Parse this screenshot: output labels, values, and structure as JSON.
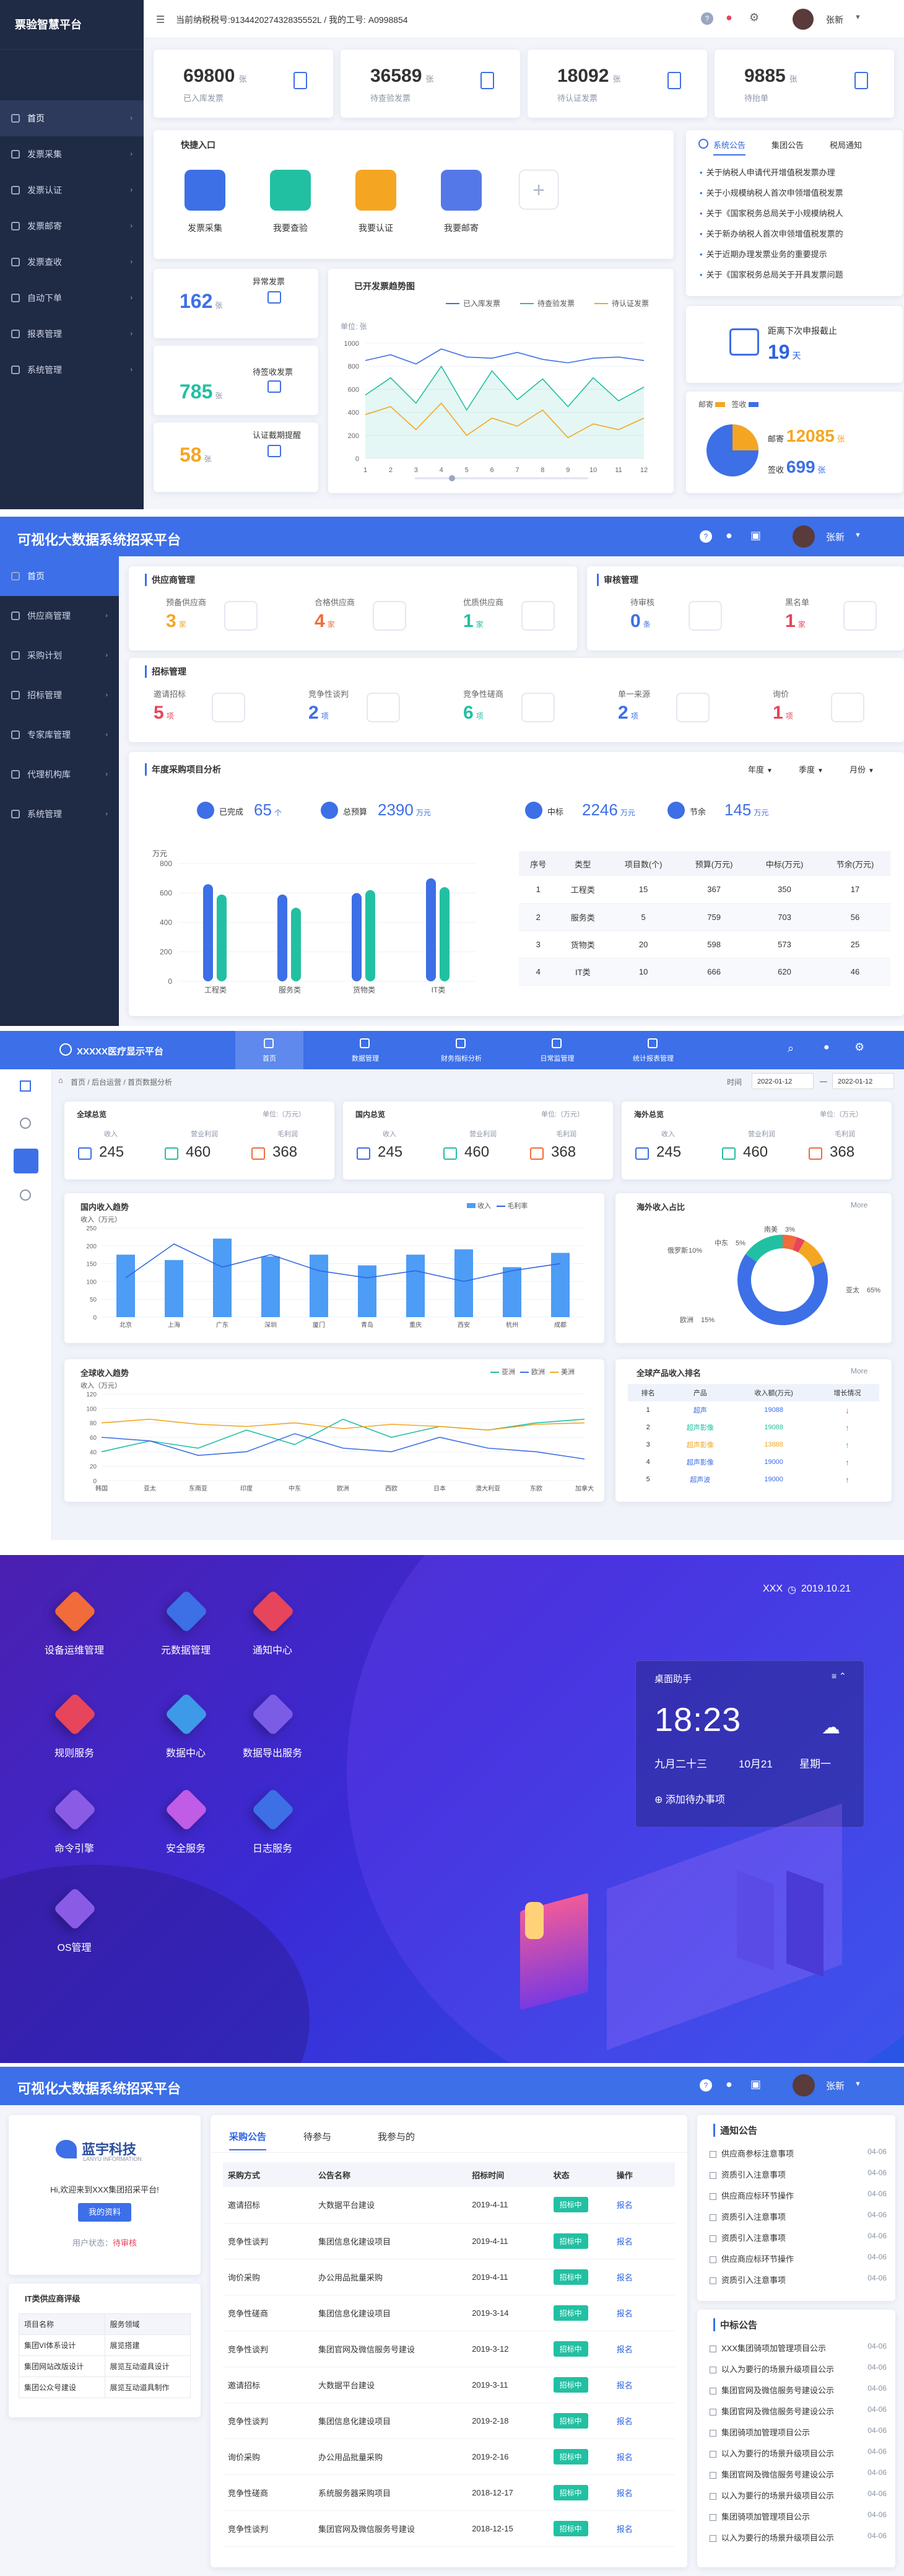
{
  "s1": {
    "brand": "票验智慧平台",
    "taxline": "当前纳税税号:913442027432835552L / 我的工号: A0998854",
    "user": "张新",
    "menu": [
      "首页",
      "发票采集",
      "发票认证",
      "发票邮寄",
      "发票查收",
      "自动下单",
      "报表管理",
      "系统管理"
    ],
    "stats": [
      {
        "value": "69800",
        "unit": "张",
        "label": "已入库发票"
      },
      {
        "value": "36589",
        "unit": "张",
        "label": "待查验发票"
      },
      {
        "value": "18092",
        "unit": "张",
        "label": "待认证发票"
      },
      {
        "value": "9885",
        "unit": "张",
        "label": "待抬单"
      }
    ],
    "quick_title": "快捷入口",
    "quick": [
      {
        "label": "发票采集",
        "color": "#3d6fe6"
      },
      {
        "label": "我要查验",
        "color": "#22c0a2"
      },
      {
        "label": "我要认证",
        "color": "#f4a623"
      },
      {
        "label": "我要邮寄",
        "color": "#5578e8"
      }
    ],
    "notice_tabs": [
      "系统公告",
      "集团公告",
      "税局通知"
    ],
    "notices": [
      "关于纳税人申请代开增值税发票办理",
      "关于小规模纳税人首次申领增值税发票",
      "关于《国家税务总局关于小规模纳税人",
      "关于新办纳税人首次申领增值税发票的",
      "关于近期办理发票业务的重要提示",
      "关于《国家税务总局关于开具发票问题"
    ],
    "side_stats": [
      {
        "value": "162",
        "unit": "张",
        "label": "异常发票"
      },
      {
        "value": "785",
        "unit": "张",
        "label": "待签收发票"
      },
      {
        "value": "58",
        "unit": "张",
        "label": "认证截期提醒"
      }
    ],
    "trend_title": "已开发票趋势图",
    "trend_unit": "单位: 张",
    "deadline_label": "距离下次申报截止",
    "deadline_value": "19",
    "deadline_unit": "天",
    "mail_legend": [
      "邮寄",
      "签收"
    ],
    "mail_value": "12085",
    "mail_value_unit": "张",
    "sign_label": "签收",
    "sign_value": "699",
    "sign_unit": "张",
    "chart_data": {
      "type": "line",
      "series": [
        {
          "name": "已入库发票",
          "color": "#3d6fe6",
          "values": [
            850,
            900,
            820,
            950,
            880,
            870,
            920,
            860,
            830,
            870,
            880,
            850
          ]
        },
        {
          "name": "待查验发票",
          "color": "#22c0a2",
          "values": [
            550,
            700,
            480,
            800,
            420,
            760,
            510,
            690,
            450,
            700,
            500,
            620
          ]
        },
        {
          "name": "待认证发票",
          "color": "#f4a623",
          "values": [
            380,
            450,
            250,
            480,
            200,
            350,
            280,
            420,
            180,
            300,
            250,
            350
          ]
        }
      ],
      "x": [
        "1",
        "2",
        "3",
        "4",
        "5",
        "6",
        "7",
        "8",
        "9",
        "10",
        "11",
        "12"
      ],
      "yticks": [
        "0",
        "200",
        "400",
        "600",
        "800",
        "1000"
      ],
      "ylim": [
        0,
        1000
      ]
    }
  },
  "s2": {
    "title": "可视化大数据系统招采平台",
    "user": "张新",
    "menu": [
      "首页",
      "供应商管理",
      "采购计划",
      "招标管理",
      "专家库管理",
      "代理机构库",
      "系统管理"
    ],
    "sup_title": "供应商管理",
    "sup": [
      {
        "label": "预备供应商",
        "value": "3",
        "unit": "家",
        "color": "#f4a623"
      },
      {
        "label": "合格供应商",
        "value": "4",
        "unit": "家",
        "color": "#f26b3a"
      },
      {
        "label": "优质供应商",
        "value": "1",
        "unit": "家",
        "color": "#22c0a2"
      }
    ],
    "audit_title": "审核管理",
    "audit": [
      {
        "label": "待审核",
        "value": "0",
        "unit": "条",
        "color": "#3d6fe6"
      },
      {
        "label": "黑名单",
        "value": "1",
        "unit": "家",
        "color": "#e6455c"
      }
    ],
    "bid_title": "招标管理",
    "bid": [
      {
        "label": "邀请招标",
        "value": "5",
        "unit": "项",
        "color": "#e6455c"
      },
      {
        "label": "竞争性谈判",
        "value": "2",
        "unit": "项",
        "color": "#3d6fe6"
      },
      {
        "label": "竞争性磋商",
        "value": "6",
        "unit": "项",
        "color": "#22c0a2"
      },
      {
        "label": "单一来源",
        "value": "2",
        "unit": "项",
        "color": "#3d6fe6"
      },
      {
        "label": "询价",
        "value": "1",
        "unit": "项",
        "color": "#e6455c"
      }
    ],
    "analysis_title": "年度采购项目分析",
    "filters": [
      "年度",
      "季度",
      "月份"
    ],
    "kpis": [
      {
        "label": "已完成",
        "value": "65",
        "unit": "个"
      },
      {
        "label": "总预算",
        "value": "2390",
        "unit": "万元"
      },
      {
        "label": "中标",
        "value": "2246",
        "unit": "万元"
      },
      {
        "label": "节余",
        "value": "145",
        "unit": "万元"
      }
    ],
    "chart_data": {
      "type": "bar",
      "ylabel": "万元",
      "yticks": [
        "0",
        "200",
        "400",
        "600",
        "800"
      ],
      "ylim": [
        0,
        800
      ],
      "categories": [
        "工程类",
        "服务类",
        "货物类",
        "IT类"
      ],
      "series": [
        {
          "color": "#3d6fe6",
          "values": [
            660,
            590,
            600,
            700
          ]
        },
        {
          "color": "#22c0a2",
          "values": [
            590,
            500,
            620,
            640
          ]
        }
      ]
    },
    "table_head": [
      "序号",
      "类型",
      "项目数(个)",
      "预算(万元)",
      "中标(万元)",
      "节余(万元)"
    ],
    "table_rows": [
      [
        "1",
        "工程类",
        "15",
        "367",
        "350",
        "17"
      ],
      [
        "2",
        "服务类",
        "5",
        "759",
        "703",
        "56"
      ],
      [
        "3",
        "货物类",
        "20",
        "598",
        "573",
        "25"
      ],
      [
        "4",
        "IT类",
        "10",
        "666",
        "620",
        "46"
      ]
    ]
  },
  "s3": {
    "title": "XXXXX医疗显示平台",
    "tabs": [
      "首页",
      "数据管理",
      "财务指标分析",
      "日常监管理",
      "统计报表管理"
    ],
    "breadcrumb": "首页 / 后台运营 / 首页数据分析",
    "period_label": "时间",
    "date_from": "2022-01-12",
    "date_to": "2022-01-12",
    "cards": [
      {
        "title": "全球总览",
        "unit": "单位:（万元）",
        "items": [
          {
            "label": "收入",
            "value": "245"
          },
          {
            "label": "营业利润",
            "value": "460"
          },
          {
            "label": "毛利润",
            "value": "368"
          }
        ]
      },
      {
        "title": "国内总览",
        "unit": "单位:（万元）",
        "items": [
          {
            "label": "收入",
            "value": "245"
          },
          {
            "label": "营业利润",
            "value": "460"
          },
          {
            "label": "毛利润",
            "value": "368"
          }
        ]
      },
      {
        "title": "海外总览",
        "unit": "单位:（万元）",
        "items": [
          {
            "label": "收入",
            "value": "245"
          },
          {
            "label": "营业利润",
            "value": "460"
          },
          {
            "label": "毛利润",
            "value": "368"
          }
        ]
      }
    ],
    "domestic_title": "国内收入趋势",
    "domestic_legend": [
      "收入",
      "毛利率"
    ],
    "domestic_ylabel": "收入（万元）",
    "overseas_title": "海外收入占比",
    "more": "More",
    "global_title": "全球收入趋势",
    "global_legend": [
      "亚洲",
      "欧洲",
      "美洲"
    ],
    "global_ylabel": "收入（万元）",
    "rank_title": "全球产品收入排名",
    "rank_head": [
      "排名",
      "产品",
      "收入额(万元)",
      "增长情况"
    ],
    "rank_rows": [
      {
        "rank": "1",
        "name": "超声",
        "value": "19088",
        "trend": "↓",
        "color": "#e6455c",
        "ncolor": "#3d6fe6"
      },
      {
        "rank": "2",
        "name": "超声影像",
        "value": "19088",
        "trend": "↑",
        "color": "#22c0a2",
        "ncolor": "#22c0a2"
      },
      {
        "rank": "3",
        "name": "超声影像",
        "value": "13888",
        "trend": "↑",
        "color": "#22c0a2",
        "ncolor": "#f4a623"
      },
      {
        "rank": "4",
        "name": "超声影像",
        "value": "19000",
        "trend": "↑",
        "color": "#e6455c",
        "ncolor": "#3d6fe6"
      },
      {
        "rank": "5",
        "name": "超声波",
        "value": "19000",
        "trend": "↑",
        "color": "#e6455c",
        "ncolor": "#3d6fe6"
      }
    ],
    "chart_data": [
      {
        "type": "bar",
        "categories": [
          "北京",
          "上海",
          "广东",
          "深圳",
          "厦门",
          "青岛",
          "重庆",
          "西安",
          "杭州",
          "成都"
        ],
        "values": [
          175,
          160,
          220,
          170,
          175,
          145,
          175,
          190,
          140,
          180
        ],
        "ylim": [
          0,
          250
        ],
        "yticks": [
          "0",
          "50",
          "100",
          "150",
          "200",
          "250"
        ],
        "line": [
          110,
          205,
          140,
          175,
          130,
          110,
          130,
          100,
          130,
          150
        ]
      },
      {
        "type": "pie",
        "labels": [
          "中东",
          "南美",
          "俄罗斯",
          "亚太",
          "欧洲"
        ],
        "values": [
          5,
          3,
          10,
          65,
          15
        ],
        "value_labels": [
          "5%",
          "3%",
          "10%",
          "65%",
          "15%"
        ],
        "colors": [
          "#f26b3a",
          "#e6455c",
          "#f4a623",
          "#3d6fe6",
          "#22c0a2"
        ]
      },
      {
        "type": "line",
        "categories": [
          "韩国",
          "亚太",
          "东南亚",
          "印度",
          "中东",
          "欧洲",
          "西欧",
          "日本",
          "澳大利亚",
          "东欧",
          "加拿大"
        ],
        "ylim": [
          0,
          120
        ],
        "yticks": [
          "0",
          "20",
          "40",
          "60",
          "80",
          "100",
          "120"
        ],
        "series": [
          {
            "name": "亚洲",
            "color": "#22c0a2",
            "values": [
              40,
              55,
              45,
              70,
              50,
              85,
              60,
              75,
              70,
              80,
              85
            ]
          },
          {
            "name": "欧洲",
            "color": "#3d6fe6",
            "values": [
              60,
              55,
              35,
              40,
              65,
              45,
              40,
              60,
              45,
              40,
              30
            ]
          },
          {
            "name": "美洲",
            "color": "#f4a623",
            "values": [
              80,
              85,
              78,
              75,
              80,
              72,
              78,
              75,
              70,
              78,
              80
            ]
          }
        ]
      }
    ]
  },
  "s4": {
    "brand": "XXX",
    "date": "2019.10.21",
    "icons": [
      {
        "label": "设备运维管理",
        "color": "#f26b3a"
      },
      {
        "label": "元数据管理",
        "color": "#3d6fe6"
      },
      {
        "label": "通知中心",
        "color": "#e6455c"
      },
      {
        "label": "规则服务",
        "color": "#e6455c"
      },
      {
        "label": "数据中心",
        "color": "#3d9ae8"
      },
      {
        "label": "数据导出服务",
        "color": "#7a5ce6"
      },
      {
        "label": "命令引擎",
        "color": "#8a5ce6"
      },
      {
        "label": "安全服务",
        "color": "#c05ce6"
      },
      {
        "label": "日志服务",
        "color": "#3d6fe6"
      },
      {
        "label": "OS管理",
        "color": "#8a5ce6"
      }
    ],
    "assistant_title": "桌面助手",
    "time": "18:23",
    "lunar": "九月二十三",
    "day": "10月21",
    "weekday": "星期一",
    "add_todo": "添加待办事项"
  },
  "s5": {
    "title": "可视化大数据系统招采平台",
    "user": "张新",
    "company": "蓝宇科技",
    "company_en": "LANYU INFORMATION",
    "welcome": "Hi,欢迎来到XXX集团招采平台!",
    "my_info": "我的资料",
    "status_label": "用户状态：",
    "status_value": "待审核",
    "review_title": "IT类供应商评级",
    "review_head": [
      "项目名称",
      "服务领域"
    ],
    "review_rows": [
      [
        "集团VI体系设计",
        "展览搭建"
      ],
      [
        "集团网站改版设计",
        "展览互动道具设计"
      ],
      [
        "集团公众号建设",
        "展览互动道具制作"
      ]
    ],
    "tabs": [
      "采购公告",
      "待参与",
      "我参与的"
    ],
    "table_head": [
      "采购方式",
      "公告名称",
      "招标时间",
      "状态",
      "操作"
    ],
    "rows": [
      [
        "邀请招标",
        "大数据平台建设",
        "2019-4-11",
        "招标中",
        "报名"
      ],
      [
        "竞争性谈判",
        "集团信息化建设项目",
        "2019-4-11",
        "招标中",
        "报名"
      ],
      [
        "询价采购",
        "办公用品批量采购",
        "2019-4-11",
        "招标中",
        "报名"
      ],
      [
        "竞争性磋商",
        "集团信息化建设项目",
        "2019-3-14",
        "招标中",
        "报名"
      ],
      [
        "竞争性谈判",
        "集团官网及微信服务号建设",
        "2019-3-12",
        "招标中",
        "报名"
      ],
      [
        "邀请招标",
        "大数据平台建设",
        "2019-3-11",
        "招标中",
        "报名"
      ],
      [
        "竞争性谈判",
        "集团信息化建设项目",
        "2019-2-18",
        "招标中",
        "报名"
      ],
      [
        "询价采购",
        "办公用品批量采购",
        "2019-2-16",
        "招标中",
        "报名"
      ],
      [
        "竞争性磋商",
        "系统服务器采购项目",
        "2018-12-17",
        "招标中",
        "报名"
      ],
      [
        "竞争性谈判",
        "集团官网及微信服务号建设",
        "2018-12-15",
        "招标中",
        "报名"
      ]
    ],
    "notice_title": "通知公告",
    "notices": [
      [
        "供应商参标注意事项",
        "04-06"
      ],
      [
        "资质引入注意事项",
        "04-06"
      ],
      [
        "供应商应标环节操作",
        "04-06"
      ],
      [
        "资质引入注意事项",
        "04-06"
      ],
      [
        "资质引入注意事项",
        "04-06"
      ],
      [
        "供应商应标环节操作",
        "04-06"
      ],
      [
        "资质引入注意事项",
        "04-06"
      ]
    ],
    "win_title": "中标公告",
    "wins": [
      [
        "XXX集团骑项加管理项目公示",
        "04-06"
      ],
      [
        "以入为要行的场景升级项目公示",
        "04-06"
      ],
      [
        "集团官网及微信服务号建设公示",
        "04-06"
      ],
      [
        "集团官网及微信服务号建设公示",
        "04-06"
      ],
      [
        "集团骑项加管理项目公示",
        "04-06"
      ],
      [
        "以入为要行的场景升级项目公示",
        "04-06"
      ],
      [
        "集团官网及微信服务号建设公示",
        "04-06"
      ],
      [
        "以入为要行的场景升级项目公示",
        "04-06"
      ],
      [
        "集团骑项加管理项目公示",
        "04-06"
      ],
      [
        "以入为要行的场景升级项目公示",
        "04-06"
      ]
    ]
  }
}
